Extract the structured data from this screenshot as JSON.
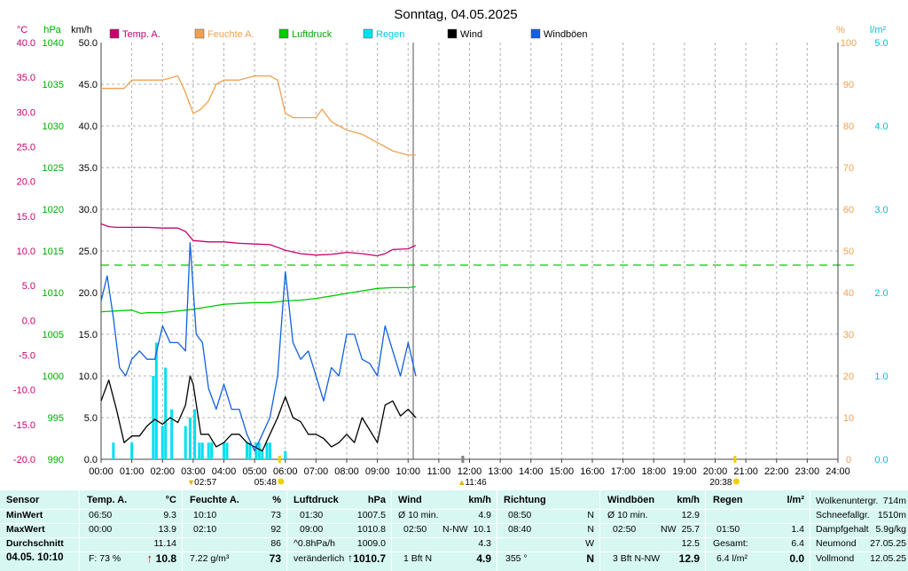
{
  "title": "Sonntag, 04.05.2025",
  "units_left": {
    "temp": "°C",
    "pressure": "hPa",
    "wind": "km/h"
  },
  "units_right": {
    "humidity": "%",
    "rain": "l/m²"
  },
  "legend": [
    {
      "label": "Temp. A.",
      "color": "#c8006e"
    },
    {
      "label": "Feuchte A.",
      "color": "#f0a050"
    },
    {
      "label": "Luftdruck",
      "color": "#00cc00"
    },
    {
      "label": "Regen",
      "color": "#00e0f0"
    },
    {
      "label": "Wind",
      "color": "#000000"
    },
    {
      "label": "Windböen",
      "color": "#1060e0"
    }
  ],
  "axis_labels": {
    "temp": [
      "40.0",
      "35.0",
      "30.0",
      "25.0",
      "20.0",
      "15.0",
      "10.0",
      "5.0",
      "0.0",
      "-5.0",
      "-10.0",
      "-15.0",
      "-20.0"
    ],
    "pressure": [
      "1040",
      "1035",
      "1030",
      "1025",
      "1020",
      "1015",
      "1010",
      "1005",
      "1000",
      "995",
      "990"
    ],
    "wind": [
      "50.0",
      "45.0",
      "40.0",
      "35.0",
      "30.0",
      "25.0",
      "20.0",
      "15.0",
      "10.0",
      "5.0",
      "0.0"
    ],
    "humidity": [
      "100",
      "90",
      "80",
      "70",
      "60",
      "50",
      "40",
      "30",
      "20",
      "10",
      "0"
    ],
    "rain": [
      "5.0",
      "4.0",
      "3.0",
      "2.0",
      "1.0",
      "0.0"
    ],
    "time": [
      "00:00",
      "01:00",
      "02:00",
      "03:00",
      "04:00",
      "05:00",
      "06:00",
      "07:00",
      "08:00",
      "09:00",
      "10:00",
      "11:00",
      "12:00",
      "13:00",
      "14:00",
      "15:00",
      "16:00",
      "17:00",
      "18:00",
      "19:00",
      "20:00",
      "21:00",
      "22:00",
      "23:00",
      "24:00"
    ]
  },
  "markers": {
    "moonset": "02:57",
    "sunrise": "05:48",
    "noon": "11:46",
    "sunset": "20:38"
  },
  "chart_data": {
    "type": "line",
    "title": "Sonntag, 04.05.2025",
    "x_unit": "hours",
    "xlim": [
      0,
      24
    ],
    "ylim_wind_kmh": [
      0,
      50
    ],
    "ylim_temp_c": [
      -20,
      40
    ],
    "ylim_pressure_hpa": [
      990,
      1040
    ],
    "ylim_humidity_pct": [
      0,
      100
    ],
    "ylim_rain_lm2": [
      0,
      5
    ],
    "grid": true,
    "reference_line_wind_kmh": 23.3,
    "series": [
      {
        "name": "Temp. A.",
        "axis": "temp",
        "color": "#c8006e",
        "x": [
          0,
          0.25,
          0.5,
          1,
          1.5,
          2,
          2.5,
          2.75,
          3,
          3.5,
          4,
          4.5,
          5,
          5.5,
          6,
          6.5,
          7,
          7.5,
          8,
          8.5,
          9,
          9.25,
          9.5,
          10,
          10.25
        ],
        "y": [
          13.9,
          13.5,
          13.4,
          13.4,
          13.4,
          13.3,
          13.3,
          12.8,
          11.5,
          11.3,
          11.3,
          11.1,
          11.0,
          10.9,
          10.1,
          9.6,
          9.4,
          9.5,
          9.8,
          9.6,
          9.3,
          9.6,
          10.2,
          10.3,
          10.8
        ]
      },
      {
        "name": "Feuchte A.",
        "axis": "humidity",
        "color": "#f0a050",
        "x": [
          0,
          0.5,
          0.75,
          1,
          1.5,
          2,
          2.5,
          2.75,
          3,
          3.25,
          3.5,
          3.75,
          4,
          4.5,
          5,
          5.5,
          5.75,
          6,
          6.25,
          6.5,
          7,
          7.2,
          7.5,
          8,
          8.5,
          9,
          9.25,
          9.5,
          10,
          10.25
        ],
        "y": [
          89,
          89,
          89,
          91,
          91,
          91,
          92,
          88,
          83,
          84,
          86,
          90,
          91,
          91,
          92,
          92,
          91,
          83,
          82,
          82,
          82,
          84,
          81,
          79,
          78,
          76,
          75,
          74,
          73,
          73
        ]
      },
      {
        "name": "Luftdruck",
        "axis": "pressure",
        "color": "#00cc00",
        "x": [
          0,
          0.5,
          1,
          1.3,
          1.5,
          2,
          2.5,
          3,
          3.5,
          4,
          4.5,
          5,
          5.5,
          6,
          6.5,
          7,
          7.5,
          8,
          8.5,
          9,
          9.5,
          10,
          10.25
        ],
        "y": [
          1007.7,
          1007.8,
          1007.9,
          1007.5,
          1007.6,
          1007.6,
          1007.8,
          1008.0,
          1008.3,
          1008.6,
          1008.7,
          1008.8,
          1008.8,
          1009.0,
          1009.1,
          1009.3,
          1009.6,
          1009.9,
          1010.2,
          1010.5,
          1010.6,
          1010.6,
          1010.7
        ]
      },
      {
        "name": "Wind",
        "axis": "wind",
        "color": "#000000",
        "x": [
          0,
          0.25,
          0.5,
          0.75,
          1,
          1.25,
          1.5,
          1.75,
          2,
          2.25,
          2.5,
          2.75,
          2.9,
          3,
          3.25,
          3.5,
          3.75,
          4,
          4.25,
          4.5,
          4.75,
          5,
          5.25,
          5.5,
          5.75,
          6,
          6.25,
          6.5,
          6.75,
          7,
          7.25,
          7.5,
          7.75,
          8,
          8.25,
          8.5,
          8.75,
          9,
          9.25,
          9.5,
          9.75,
          10,
          10.25
        ],
        "y": [
          7,
          9.5,
          6,
          2,
          2.8,
          2.8,
          4,
          4.8,
          4.2,
          5,
          4.4,
          6.5,
          10,
          9,
          3,
          3,
          1.5,
          2,
          3,
          3,
          2,
          1.5,
          1,
          3,
          5,
          7.5,
          5,
          4.5,
          3,
          3,
          2.5,
          1.5,
          2,
          3,
          2,
          5,
          3.5,
          2,
          6.5,
          7,
          5.2,
          6,
          5
        ]
      },
      {
        "name": "Windböen",
        "axis": "wind",
        "color": "#1060e0",
        "x": [
          0,
          0.2,
          0.4,
          0.6,
          0.8,
          1,
          1.25,
          1.5,
          1.75,
          2,
          2.25,
          2.5,
          2.75,
          2.9,
          3.1,
          3.3,
          3.5,
          3.75,
          4,
          4.25,
          4.5,
          4.75,
          5,
          5.25,
          5.5,
          5.75,
          6,
          6.25,
          6.5,
          6.75,
          7,
          7.25,
          7.5,
          7.75,
          8,
          8.25,
          8.5,
          8.75,
          9,
          9.25,
          9.5,
          9.75,
          10,
          10.25
        ],
        "y": [
          19,
          22,
          17,
          11,
          10,
          12,
          13,
          12,
          12,
          16,
          14,
          14,
          13,
          26,
          15,
          14,
          8.5,
          6,
          9,
          6,
          6,
          3,
          1,
          3,
          5,
          10,
          22.5,
          14,
          12,
          13,
          10,
          7,
          11,
          10,
          15,
          15,
          12,
          11.5,
          10,
          16,
          13,
          10,
          14,
          10
        ]
      }
    ],
    "rain_bars": {
      "axis": "rain",
      "color": "#00e0f0",
      "x": [
        0.4,
        1,
        1.7,
        1.8,
        2,
        2.1,
        2.3,
        2.75,
        2.9,
        3.05,
        3.2,
        3.3,
        3.5,
        3.6,
        4,
        4.1,
        4.75,
        4.85,
        5.05,
        5.15,
        5.25,
        5.4,
        5.5,
        6
      ],
      "y": [
        0.2,
        0.2,
        1.0,
        1.4,
        0.4,
        1.1,
        0.6,
        0.4,
        0.5,
        0.6,
        0.2,
        0.2,
        0.2,
        0.2,
        0.2,
        0.2,
        0.2,
        0.2,
        0.2,
        0.2,
        0.1,
        0.2,
        0.2,
        0.1
      ]
    }
  },
  "stats": {
    "sensor": {
      "header": "Sensor",
      "rows": [
        "MinWert",
        "MaxWert",
        "Durchschnitt"
      ],
      "footer": "04.05. 10:10"
    },
    "temp": {
      "header": "Temp. A.",
      "unit": "°C",
      "min_time": "06:50",
      "min": "9.3",
      "max_time": "00:00",
      "max": "13.9",
      "avg": "11.14",
      "footer_left": "F: 73 %",
      "footer_arrow": "↑",
      "footer_value": "10.8"
    },
    "humidity": {
      "header": "Feuchte A.",
      "unit": "%",
      "min_time": "10:10",
      "min": "73",
      "max_time": "02:10",
      "max": "92",
      "avg": "86",
      "footer_left": "7.22 g/m³",
      "footer_value": "73"
    },
    "pressure": {
      "header": "Luftdruck",
      "unit": "hPa",
      "min_time": "01:30",
      "min": "1007.5",
      "max_time": "09:00",
      "max": "1010.8",
      "avg_left": "^0.8hPa/h",
      "avg": "1009.0",
      "footer_left": "veränderlich",
      "footer_arrow": "↑",
      "footer_value": "1010.7"
    },
    "wind": {
      "header": "Wind",
      "unit": "km/h",
      "r1_left": "Ø 10 min.",
      "r1_value": "4.9",
      "r2_left": "02:50",
      "r2_dir": "N-NW",
      "r2_value": "10.1",
      "avg": "4.3",
      "footer_left": "1 Bft N",
      "footer_value": "4.9"
    },
    "direction": {
      "header": "Richtung",
      "r1_time": "08:50",
      "r1_dir": "N",
      "r2_time": "08:40",
      "r2_dir": "N",
      "avg_dir": "W",
      "footer_left": "355 °",
      "footer_value": "N"
    },
    "gusts": {
      "header": "Windböen",
      "unit": "km/h",
      "r1_left": "Ø 10 min.",
      "r1_value": "12.9",
      "r2_left": "02:50",
      "r2_dir": "NW",
      "r2_value": "25.7",
      "avg": "12.5",
      "footer_left": "3 Bft N-NW",
      "footer_value": "12.9"
    },
    "rain": {
      "header": "Regen",
      "unit": "l/m²",
      "r2_time": "01:50",
      "r2_value": "1.4",
      "total_label": "Gesamt:",
      "total": "6.4",
      "footer_left": "6.4 l/m²",
      "footer_value": "0.0"
    },
    "misc": [
      {
        "label": "Wolkenuntergr.",
        "value": "714m"
      },
      {
        "label": "Schneefallgr.",
        "value": "1510m"
      },
      {
        "label": "Dampfgehalt",
        "value": "5.9g/kg"
      },
      {
        "label": "Neumond",
        "value": "27.05.25"
      },
      {
        "label": "Vollmond",
        "value": "12.05.25"
      }
    ]
  }
}
